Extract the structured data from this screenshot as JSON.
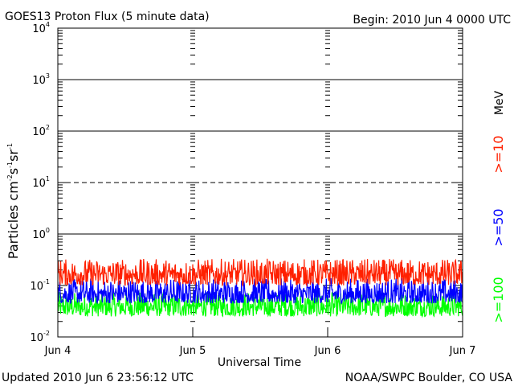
{
  "chart_data": {
    "type": "line",
    "title": "GOES13 Proton Flux (5 minute data)",
    "begin_label": "Begin: 2010 Jun 4 0000 UTC",
    "updated_label": "Updated 2010 Jun  6 23:56:12 UTC",
    "source_label": "NOAA/SWPC Boulder, CO USA",
    "xlabel": "Universal Time",
    "ylabel": {
      "base": "Particles cm",
      "exp1": "-2",
      "mid1": "s",
      "exp2": "-1",
      "mid2": "sr",
      "exp3": "-1"
    },
    "yscale": "log",
    "ylim": [
      0.01,
      10000
    ],
    "y_ticks": [
      {
        "value": 0.01,
        "base": "10",
        "exp": "-2"
      },
      {
        "value": 0.1,
        "base": "10",
        "exp": "-1"
      },
      {
        "value": 1,
        "base": "10",
        "exp": "0"
      },
      {
        "value": 10,
        "base": "10",
        "exp": "1"
      },
      {
        "value": 100,
        "base": "10",
        "exp": "2"
      },
      {
        "value": 1000,
        "base": "10",
        "exp": "3"
      },
      {
        "value": 10000,
        "base": "10",
        "exp": "4"
      }
    ],
    "x_categories": [
      "Jun 4",
      "Jun 5",
      "Jun 6",
      "Jun 7"
    ],
    "xlim_days": [
      0,
      3
    ],
    "threshold_lines": [
      {
        "value": 1,
        "style": "solid"
      },
      {
        "value": 10,
        "style": "dashed"
      },
      {
        "value": 100,
        "style": "solid"
      },
      {
        "value": 1000,
        "style": "solid"
      }
    ],
    "unit_label": "MeV",
    "series": [
      {
        "name": ">=10",
        "color": "#ff2000",
        "typical": 0.17,
        "min": 0.1,
        "max": 0.33
      },
      {
        "name": ">=50",
        "color": "#0000ff",
        "typical": 0.07,
        "min": 0.045,
        "max": 0.14
      },
      {
        "name": ">=100",
        "color": "#00ff00",
        "typical": 0.04,
        "min": 0.025,
        "max": 0.075
      }
    ]
  }
}
